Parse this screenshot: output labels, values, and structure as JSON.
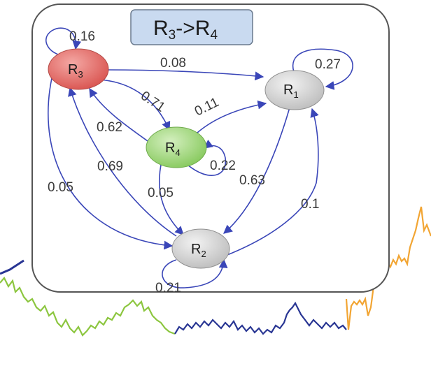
{
  "title": {
    "main_a": "R",
    "sub_a": "3",
    "arrow": "->",
    "main_b": "R",
    "sub_b": "4"
  },
  "nodes": {
    "r1": {
      "letter": "R",
      "sub": "1"
    },
    "r2": {
      "letter": "R",
      "sub": "2"
    },
    "r3": {
      "letter": "R",
      "sub": "3"
    },
    "r4": {
      "letter": "R",
      "sub": "4"
    }
  },
  "edges": {
    "r3_self": "0.16",
    "r3_r1": "0.08",
    "r1_self": "0.27",
    "r3_r4": "0.71",
    "r4_r1": "0.11",
    "r4_r3": "0.62",
    "r4_self": "0.22",
    "r2_r3": "0.69",
    "r3_r2": "0.05",
    "r4_r2": "0.05",
    "r1_r2": "0.63",
    "r2_r1": "0.1",
    "r2_self": "0.21"
  },
  "colors": {
    "edge": "#3a46b8",
    "r3_fill": "#e06a66",
    "r4_fill": "#8fcf6a",
    "r1_fill": "#cfcfcf",
    "r2_fill": "#cfcfcf",
    "title_fill": "#c9daf0",
    "trace_left": "#8cc63f",
    "trace_mid": "#283593",
    "trace_right": "#f2a533"
  }
}
